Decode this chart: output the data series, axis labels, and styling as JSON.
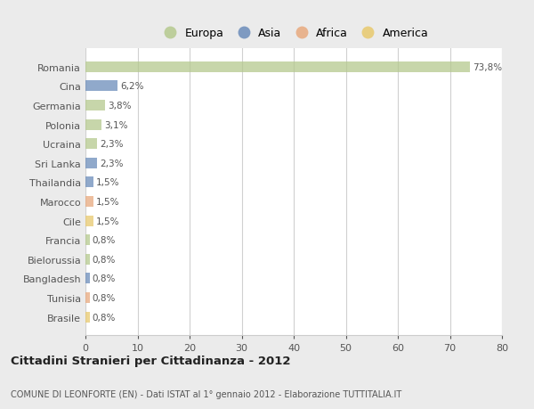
{
  "categories": [
    "Romania",
    "Cina",
    "Germania",
    "Polonia",
    "Ucraina",
    "Sri Lanka",
    "Thailandia",
    "Marocco",
    "Cile",
    "Francia",
    "Bielorussia",
    "Bangladesh",
    "Tunisia",
    "Brasile"
  ],
  "values": [
    73.8,
    6.2,
    3.8,
    3.1,
    2.3,
    2.3,
    1.5,
    1.5,
    1.5,
    0.8,
    0.8,
    0.8,
    0.8,
    0.8
  ],
  "labels": [
    "73,8%",
    "6,2%",
    "3,8%",
    "3,1%",
    "2,3%",
    "2,3%",
    "1,5%",
    "1,5%",
    "1,5%",
    "0,8%",
    "0,8%",
    "0,8%",
    "0,8%",
    "0,8%"
  ],
  "colors": [
    "#b5c98e",
    "#6b8cba",
    "#b5c98e",
    "#b5c98e",
    "#b5c98e",
    "#6b8cba",
    "#6b8cba",
    "#e8a97e",
    "#e8c96e",
    "#b5c98e",
    "#b5c98e",
    "#6b8cba",
    "#e8a97e",
    "#e8c96e"
  ],
  "legend_labels": [
    "Europa",
    "Asia",
    "Africa",
    "America"
  ],
  "legend_colors": [
    "#b5c98e",
    "#6b8cba",
    "#e8a97e",
    "#e8c96e"
  ],
  "title": "Cittadini Stranieri per Cittadinanza - 2012",
  "subtitle": "COMUNE DI LEONFORTE (EN) - Dati ISTAT al 1° gennaio 2012 - Elaborazione TUTTITALIA.IT",
  "xlim": [
    0,
    80
  ],
  "xticks": [
    0,
    10,
    20,
    30,
    40,
    50,
    60,
    70,
    80
  ],
  "figure_bg": "#ebebeb",
  "axes_bg": "#ffffff",
  "grid_color": "#d0d0d0",
  "bar_height": 0.55
}
